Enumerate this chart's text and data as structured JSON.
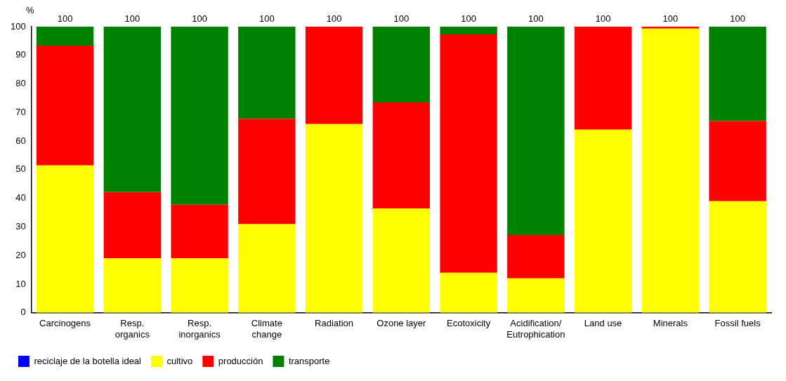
{
  "chart_data": {
    "type": "bar",
    "stacked": true,
    "ylabel": "%",
    "categories": [
      "Carcinogens",
      "Resp.\norganics",
      "Resp.\ninorganics",
      "Climate\nchange",
      "Radiation",
      "Ozone layer",
      "Ecotoxicity",
      "Acidification/\nEutrophication",
      "Land use",
      "Minerals",
      "Fossil fuels"
    ],
    "series": [
      {
        "name": "reciclaje de la botella ideal",
        "color": "#0000ff",
        "values": [
          0,
          0,
          0,
          0,
          0,
          0,
          0,
          0,
          0,
          0,
          0
        ]
      },
      {
        "name": "cultivo",
        "color": "#ffff00",
        "values": [
          51.5,
          19,
          19,
          31,
          66,
          36.5,
          14,
          12,
          64,
          99.3,
          39
        ]
      },
      {
        "name": "producción",
        "color": "#ff0000",
        "values": [
          41.9,
          23.2,
          18.8,
          36.8,
          34,
          37,
          83.3,
          15.2,
          36,
          0.7,
          28
        ]
      },
      {
        "name": "transporte",
        "color": "#008000",
        "values": [
          6.6,
          57.8,
          62.2,
          32.2,
          0,
          26.5,
          2.7,
          72.8,
          0,
          0,
          33
        ]
      }
    ],
    "totals": [
      "100",
      "100",
      "100",
      "100",
      "100",
      "100",
      "100",
      "100",
      "100",
      "100",
      "100"
    ],
    "ylim": [
      0,
      100
    ],
    "yticks": [
      0,
      10,
      20,
      30,
      40,
      50,
      60,
      70,
      80,
      90,
      100
    ],
    "grid": false,
    "legend": "bottom"
  }
}
